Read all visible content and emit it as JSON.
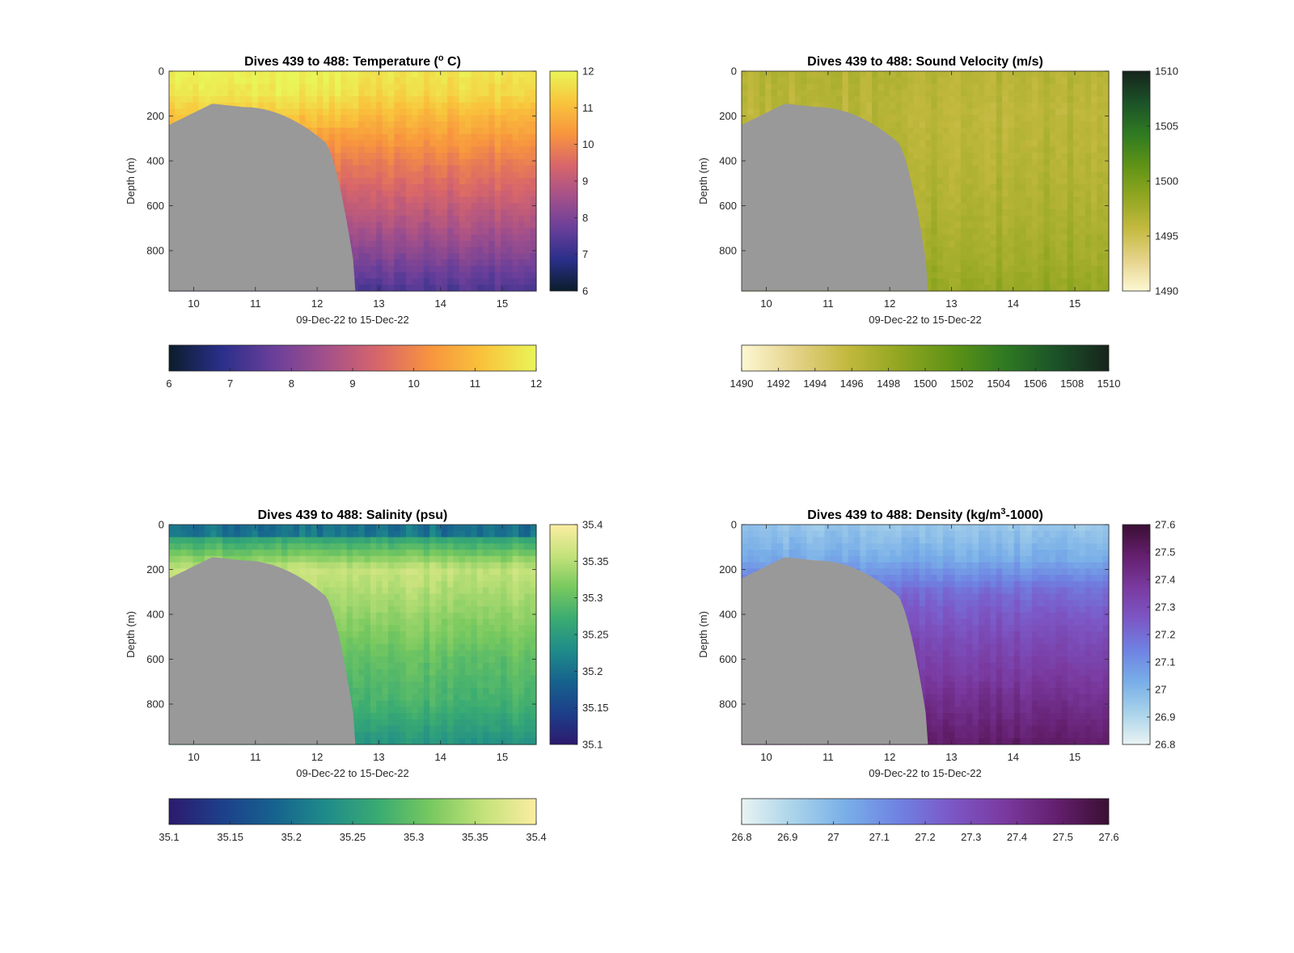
{
  "chart_data": [
    {
      "id": "temperature",
      "type": "heatmap",
      "title": "Dives 439 to 488: Temperature (",
      "title_sup": "o",
      "title_post": " C)",
      "xlabel": "09-Dec-22 to 15-Dec-22",
      "ylabel": "Depth (m)",
      "xlim": [
        9.6,
        15.55
      ],
      "ylim": [
        980,
        0
      ],
      "y_reversed": true,
      "xticks": [
        "10",
        "11",
        "12",
        "13",
        "14",
        "15"
      ],
      "yticks": [
        "0",
        "200",
        "400",
        "600",
        "800"
      ],
      "colormap": [
        "#0b1d2b",
        "#2a2f8a",
        "#6a3f9a",
        "#a4508a",
        "#d8666a",
        "#f8953e",
        "#f9c43c",
        "#e9f558"
      ],
      "clim": [
        6,
        12
      ],
      "colorbar_ticks": [
        "6",
        "7",
        "8",
        "9",
        "10",
        "11",
        "12"
      ],
      "h_colorbar_ticks": [
        "6",
        "7",
        "8",
        "9",
        "10",
        "11",
        "12"
      ],
      "bathymetry_color": "#999999",
      "series": [
        {
          "depth": 0,
          "value": 11.7
        },
        {
          "depth": 100,
          "value": 11.5
        },
        {
          "depth": 200,
          "value": 10.9
        },
        {
          "depth": 400,
          "value": 9.9
        },
        {
          "depth": 600,
          "value": 9.1
        },
        {
          "depth": 800,
          "value": 8.2
        },
        {
          "depth": 980,
          "value": 7.3
        }
      ]
    },
    {
      "id": "sound-velocity",
      "type": "heatmap",
      "title": "Dives 439 to 488: Sound Velocity (m/s)",
      "xlabel": "09-Dec-22 to 15-Dec-22",
      "ylabel": "Depth (m)",
      "xlim": [
        9.6,
        15.55
      ],
      "ylim": [
        980,
        0
      ],
      "y_reversed": true,
      "xticks": [
        "10",
        "11",
        "12",
        "13",
        "14",
        "15"
      ],
      "yticks": [
        "0",
        "200",
        "400",
        "600",
        "800"
      ],
      "colormap": [
        "#fdf8d4",
        "#e5d38a",
        "#c3b93f",
        "#91a621",
        "#5f9316",
        "#2f7a22",
        "#1b5228",
        "#17241c"
      ],
      "clim": [
        1490,
        1510
      ],
      "colorbar_ticks": [
        "1490",
        "1495",
        "1500",
        "1505",
        "1510"
      ],
      "h_colorbar_ticks": [
        "1490",
        "1492",
        "1494",
        "1496",
        "1498",
        "1500",
        "1502",
        "1504",
        "1506",
        "1508",
        "1510"
      ],
      "bathymetry_color": "#999999",
      "series": [
        {
          "depth": 0,
          "value": 1496.5
        },
        {
          "depth": 200,
          "value": 1496.2
        },
        {
          "depth": 400,
          "value": 1496.6
        },
        {
          "depth": 600,
          "value": 1497.0
        },
        {
          "depth": 800,
          "value": 1497.6
        },
        {
          "depth": 980,
          "value": 1498.4
        }
      ]
    },
    {
      "id": "salinity",
      "type": "heatmap",
      "title": "Dives 439 to 488: Salinity (psu)",
      "xlabel": "09-Dec-22 to 15-Dec-22",
      "ylabel": "Depth (m)",
      "xlim": [
        9.6,
        15.55
      ],
      "ylim": [
        980,
        0
      ],
      "y_reversed": true,
      "xticks": [
        "10",
        "11",
        "12",
        "13",
        "14",
        "15"
      ],
      "yticks": [
        "0",
        "200",
        "400",
        "600",
        "800"
      ],
      "colormap": [
        "#2c1a6e",
        "#1d3f8a",
        "#16628e",
        "#1f8c8a",
        "#3aab72",
        "#78c95f",
        "#c4e27a",
        "#fbeda2"
      ],
      "clim": [
        35.1,
        35.4
      ],
      "colorbar_ticks": [
        "35.1",
        "35.15",
        "35.2",
        "35.25",
        "35.3",
        "35.35",
        "35.4"
      ],
      "h_colorbar_ticks": [
        "35.1",
        "35.15",
        "35.2",
        "35.25",
        "35.3",
        "35.35",
        "35.4"
      ],
      "bathymetry_color": "#999999",
      "series": [
        {
          "depth": 0,
          "value": 35.25
        },
        {
          "depth": 60,
          "value": 35.26
        },
        {
          "depth": 200,
          "value": 35.36
        },
        {
          "depth": 400,
          "value": 35.33
        },
        {
          "depth": 600,
          "value": 35.3
        },
        {
          "depth": 800,
          "value": 35.28
        },
        {
          "depth": 980,
          "value": 35.24
        }
      ]
    },
    {
      "id": "density",
      "type": "heatmap",
      "title": "Dives 439 to 488: Density (kg/m",
      "title_sup": "3",
      "title_post": "-1000)",
      "xlabel": "09-Dec-22 to 15-Dec-22",
      "ylabel": "Depth (m)",
      "xlim": [
        9.6,
        15.55
      ],
      "ylim": [
        980,
        0
      ],
      "y_reversed": true,
      "xticks": [
        "10",
        "11",
        "12",
        "13",
        "14",
        "15"
      ],
      "yticks": [
        "0",
        "200",
        "400",
        "600",
        "800"
      ],
      "colormap": [
        "#e9f3f3",
        "#a9d3ea",
        "#78aee8",
        "#6f82e2",
        "#7c57c6",
        "#7a3aa0",
        "#641f6e",
        "#3b0f34"
      ],
      "clim": [
        26.8,
        27.6
      ],
      "colorbar_ticks": [
        "26.8",
        "26.9",
        "27",
        "27.1",
        "27.2",
        "27.3",
        "27.4",
        "27.5",
        "27.6"
      ],
      "h_colorbar_ticks": [
        "26.8",
        "26.9",
        "27",
        "27.1",
        "27.2",
        "27.3",
        "27.4",
        "27.5",
        "27.6"
      ],
      "bathymetry_color": "#999999",
      "series": [
        {
          "depth": 0,
          "value": 26.95
        },
        {
          "depth": 150,
          "value": 27.03
        },
        {
          "depth": 300,
          "value": 27.2
        },
        {
          "depth": 500,
          "value": 27.3
        },
        {
          "depth": 700,
          "value": 27.38
        },
        {
          "depth": 980,
          "value": 27.5
        }
      ]
    }
  ]
}
